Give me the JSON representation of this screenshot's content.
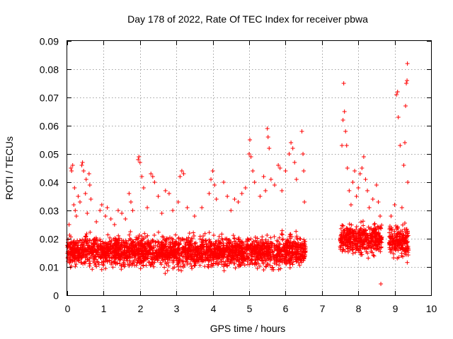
{
  "chart_data": {
    "type": "scatter",
    "title": "Day 178 of 2022, Rate Of TEC Index for receiver pbwa",
    "xlabel": "GPS time / hours",
    "ylabel": "ROTI / TECUs",
    "xlim": [
      0,
      10
    ],
    "ylim": [
      0,
      0.09
    ],
    "xticks": [
      "0",
      "1",
      "2",
      "3",
      "4",
      "5",
      "6",
      "7",
      "8",
      "9",
      "10"
    ],
    "yticks": [
      "0",
      "0.01",
      "0.02",
      "0.03",
      "0.04",
      "0.05",
      "0.06",
      "0.07",
      "0.08",
      "0.09"
    ],
    "grid": true,
    "marker": "+",
    "color": "#ff0000",
    "data_gap_hours": [
      6.55,
      7.5
    ],
    "series": [
      {
        "points": [
          [
            0.02,
            0.012
          ],
          [
            0.05,
            0.025
          ],
          [
            0.08,
            0.018
          ],
          [
            0.1,
            0.045
          ],
          [
            0.12,
            0.044
          ],
          [
            0.15,
            0.046
          ],
          [
            0.18,
            0.032
          ],
          [
            0.2,
            0.038
          ],
          [
            0.22,
            0.03
          ],
          [
            0.25,
            0.028
          ],
          [
            0.3,
            0.035
          ],
          [
            0.35,
            0.033
          ],
          [
            0.4,
            0.046
          ],
          [
            0.42,
            0.047
          ],
          [
            0.45,
            0.044
          ],
          [
            0.5,
            0.036
          ],
          [
            0.52,
            0.041
          ],
          [
            0.55,
            0.029
          ],
          [
            0.6,
            0.043
          ],
          [
            0.62,
            0.039
          ],
          [
            0.65,
            0.034
          ],
          [
            0.8,
            0.026
          ],
          [
            0.9,
            0.03
          ],
          [
            0.95,
            0.032
          ],
          [
            1.05,
            0.028
          ],
          [
            1.1,
            0.031
          ],
          [
            1.2,
            0.027
          ],
          [
            1.3,
            0.025
          ],
          [
            1.4,
            0.03
          ],
          [
            1.5,
            0.029
          ],
          [
            1.6,
            0.027
          ],
          [
            1.7,
            0.036
          ],
          [
            1.75,
            0.033
          ],
          [
            1.8,
            0.03
          ],
          [
            1.95,
            0.048
          ],
          [
            1.97,
            0.049
          ],
          [
            2.0,
            0.047
          ],
          [
            2.05,
            0.042
          ],
          [
            2.1,
            0.038
          ],
          [
            2.2,
            0.031
          ],
          [
            2.3,
            0.043
          ],
          [
            2.35,
            0.042
          ],
          [
            2.4,
            0.04
          ],
          [
            2.5,
            0.035
          ],
          [
            2.6,
            0.029
          ],
          [
            2.7,
            0.037
          ],
          [
            2.8,
            0.036
          ],
          [
            2.9,
            0.03
          ],
          [
            3.05,
            0.033
          ],
          [
            3.1,
            0.042
          ],
          [
            3.15,
            0.044
          ],
          [
            3.2,
            0.043
          ],
          [
            3.3,
            0.031
          ],
          [
            3.5,
            0.028
          ],
          [
            3.7,
            0.031
          ],
          [
            3.9,
            0.036
          ],
          [
            3.95,
            0.041
          ],
          [
            4.0,
            0.044
          ],
          [
            4.05,
            0.039
          ],
          [
            4.1,
            0.034
          ],
          [
            4.3,
            0.04
          ],
          [
            4.4,
            0.035
          ],
          [
            4.5,
            0.03
          ],
          [
            4.6,
            0.034
          ],
          [
            4.7,
            0.033
          ],
          [
            4.8,
            0.036
          ],
          [
            4.9,
            0.038
          ],
          [
            5.0,
            0.05
          ],
          [
            5.02,
            0.055
          ],
          [
            5.05,
            0.049
          ],
          [
            5.1,
            0.044
          ],
          [
            5.15,
            0.04
          ],
          [
            5.3,
            0.035
          ],
          [
            5.4,
            0.042
          ],
          [
            5.45,
            0.037
          ],
          [
            5.5,
            0.059
          ],
          [
            5.52,
            0.056
          ],
          [
            5.55,
            0.052
          ],
          [
            5.6,
            0.041
          ],
          [
            5.7,
            0.039
          ],
          [
            5.8,
            0.046
          ],
          [
            5.85,
            0.045
          ],
          [
            5.9,
            0.037
          ],
          [
            6.0,
            0.044
          ],
          [
            6.1,
            0.05
          ],
          [
            6.15,
            0.054
          ],
          [
            6.2,
            0.052
          ],
          [
            6.25,
            0.047
          ],
          [
            6.3,
            0.041
          ],
          [
            6.45,
            0.058
          ],
          [
            6.48,
            0.05
          ],
          [
            6.5,
            0.044
          ],
          [
            6.52,
            0.033
          ],
          [
            7.52,
            0.02
          ],
          [
            7.55,
            0.053
          ],
          [
            7.58,
            0.062
          ],
          [
            7.6,
            0.075
          ],
          [
            7.62,
            0.065
          ],
          [
            7.65,
            0.058
          ],
          [
            7.68,
            0.053
          ],
          [
            7.7,
            0.045
          ],
          [
            7.75,
            0.037
          ],
          [
            7.8,
            0.032
          ],
          [
            7.85,
            0.04
          ],
          [
            7.9,
            0.044
          ],
          [
            7.95,
            0.035
          ],
          [
            8.0,
            0.038
          ],
          [
            8.05,
            0.043
          ],
          [
            8.1,
            0.045
          ],
          [
            8.15,
            0.049
          ],
          [
            8.2,
            0.041
          ],
          [
            8.25,
            0.037
          ],
          [
            8.3,
            0.031
          ],
          [
            8.4,
            0.034
          ],
          [
            8.5,
            0.039
          ],
          [
            8.55,
            0.033
          ],
          [
            8.6,
            0.028
          ],
          [
            8.62,
            0.004
          ],
          [
            8.9,
            0.028
          ],
          [
            9.0,
            0.032
          ],
          [
            9.05,
            0.071
          ],
          [
            9.08,
            0.072
          ],
          [
            9.1,
            0.063
          ],
          [
            9.15,
            0.053
          ],
          [
            9.2,
            0.031
          ],
          [
            9.25,
            0.046
          ],
          [
            9.28,
            0.054
          ],
          [
            9.3,
            0.067
          ],
          [
            9.32,
            0.075
          ],
          [
            9.34,
            0.076
          ],
          [
            9.35,
            0.082
          ],
          [
            9.36,
            0.04
          ]
        ]
      }
    ]
  }
}
